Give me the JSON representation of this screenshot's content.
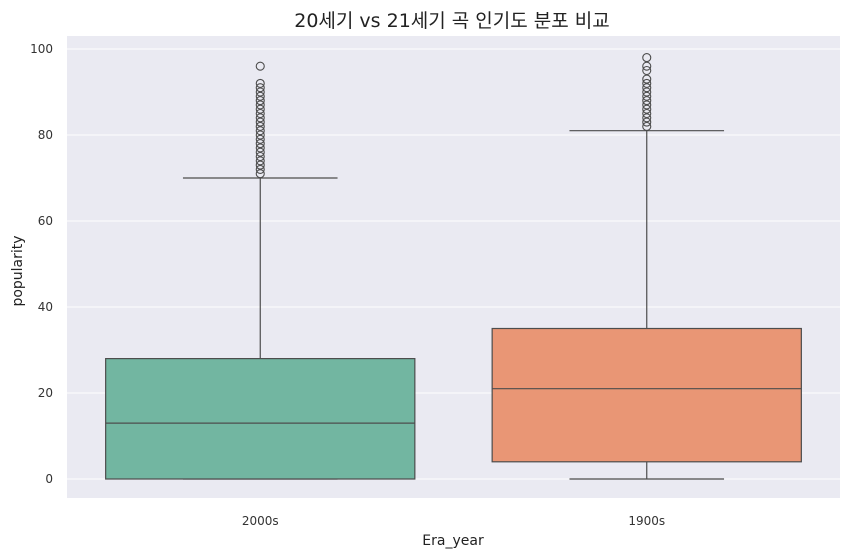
{
  "chart_data": {
    "type": "box",
    "title": "20세기 vs 21세기 곡 인기도 분포 비교",
    "xlabel": "Era_year",
    "ylabel": "popularity",
    "ylim": [
      -5,
      102
    ],
    "yticks": [
      0,
      20,
      40,
      60,
      80,
      100
    ],
    "grid": true,
    "categories": [
      "2000s",
      "1900s"
    ],
    "boxes": [
      {
        "category": "2000s",
        "color": "#72b6a1",
        "whisker_low": 0,
        "q1": 0,
        "median": 13,
        "q3": 28,
        "whisker_high": 70,
        "outliers": [
          71,
          72,
          73,
          74,
          75,
          76,
          77,
          78,
          79,
          80,
          81,
          82,
          83,
          84,
          85,
          86,
          87,
          88,
          89,
          90,
          91,
          92,
          96
        ]
      },
      {
        "category": "1900s",
        "color": "#e99675",
        "whisker_low": 0,
        "q1": 4,
        "median": 21,
        "q3": 35,
        "whisker_high": 81,
        "outliers": [
          82,
          83,
          84,
          85,
          86,
          87,
          88,
          89,
          90,
          91,
          92,
          93,
          95,
          96,
          98
        ]
      }
    ]
  }
}
